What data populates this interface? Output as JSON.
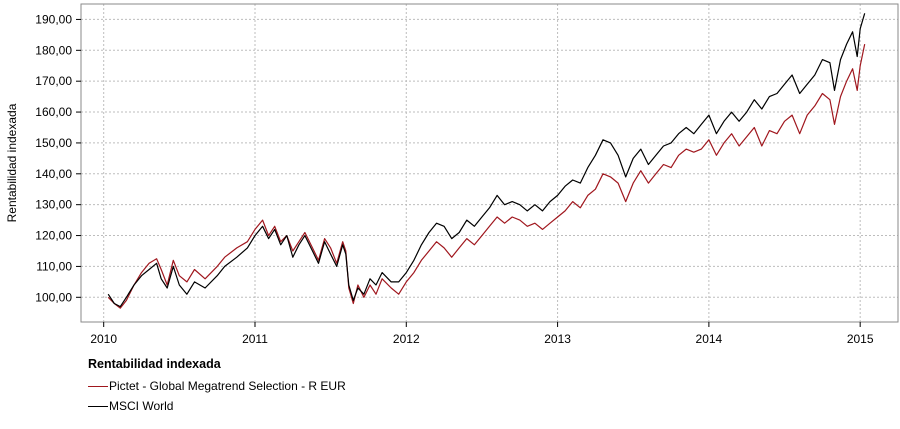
{
  "chart_data": {
    "type": "line",
    "title": "",
    "ylabel": "Rentabilidad indexada",
    "xlabel": "",
    "x_ticks": [
      "2010",
      "2011",
      "2012",
      "2013",
      "2014",
      "2015"
    ],
    "y_ticks": [
      "100,00",
      "110,00",
      "120,00",
      "130,00",
      "140,00",
      "150,00",
      "160,00",
      "170,00",
      "180,00",
      "190,00"
    ],
    "xlim": [
      2009.85,
      2015.25
    ],
    "ylim": [
      92,
      195
    ],
    "grid": true,
    "legend_title": "Rentabilidad indexada",
    "legend_placement": "bottom-left",
    "series": [
      {
        "name": "Pictet - Global Megatrend Selection - R EUR",
        "color": "#a0171e",
        "points": [
          [
            2010.03,
            100
          ],
          [
            2010.07,
            98
          ],
          [
            2010.11,
            96.5
          ],
          [
            2010.15,
            99
          ],
          [
            2010.2,
            104
          ],
          [
            2010.25,
            108
          ],
          [
            2010.3,
            111
          ],
          [
            2010.35,
            112.5
          ],
          [
            2010.38,
            109
          ],
          [
            2010.42,
            104
          ],
          [
            2010.46,
            112
          ],
          [
            2010.5,
            107
          ],
          [
            2010.55,
            105
          ],
          [
            2010.6,
            109
          ],
          [
            2010.67,
            106
          ],
          [
            2010.75,
            110
          ],
          [
            2010.8,
            113
          ],
          [
            2010.88,
            116
          ],
          [
            2010.95,
            118
          ],
          [
            2011.0,
            122
          ],
          [
            2011.05,
            125
          ],
          [
            2011.09,
            120
          ],
          [
            2011.13,
            123
          ],
          [
            2011.17,
            118
          ],
          [
            2011.21,
            120
          ],
          [
            2011.25,
            115
          ],
          [
            2011.29,
            118
          ],
          [
            2011.33,
            121
          ],
          [
            2011.38,
            116
          ],
          [
            2011.42,
            112
          ],
          [
            2011.46,
            119
          ],
          [
            2011.5,
            116
          ],
          [
            2011.54,
            111
          ],
          [
            2011.58,
            118
          ],
          [
            2011.6,
            115
          ],
          [
            2011.62,
            103
          ],
          [
            2011.65,
            98
          ],
          [
            2011.68,
            104
          ],
          [
            2011.72,
            100
          ],
          [
            2011.76,
            104
          ],
          [
            2011.8,
            101
          ],
          [
            2011.84,
            106
          ],
          [
            2011.9,
            103
          ],
          [
            2011.95,
            101
          ],
          [
            2012.0,
            105
          ],
          [
            2012.05,
            108
          ],
          [
            2012.1,
            112
          ],
          [
            2012.15,
            115
          ],
          [
            2012.2,
            118
          ],
          [
            2012.25,
            116
          ],
          [
            2012.3,
            113
          ],
          [
            2012.35,
            116
          ],
          [
            2012.4,
            119
          ],
          [
            2012.45,
            117
          ],
          [
            2012.5,
            120
          ],
          [
            2012.55,
            123
          ],
          [
            2012.6,
            126
          ],
          [
            2012.65,
            124
          ],
          [
            2012.7,
            126
          ],
          [
            2012.75,
            125
          ],
          [
            2012.8,
            123
          ],
          [
            2012.85,
            124
          ],
          [
            2012.9,
            122
          ],
          [
            2012.95,
            124
          ],
          [
            2013.0,
            126
          ],
          [
            2013.05,
            128
          ],
          [
            2013.1,
            131
          ],
          [
            2013.15,
            129
          ],
          [
            2013.2,
            133
          ],
          [
            2013.25,
            135
          ],
          [
            2013.3,
            140
          ],
          [
            2013.35,
            139
          ],
          [
            2013.4,
            137
          ],
          [
            2013.45,
            131
          ],
          [
            2013.5,
            137
          ],
          [
            2013.55,
            141
          ],
          [
            2013.6,
            137
          ],
          [
            2013.65,
            140
          ],
          [
            2013.7,
            143
          ],
          [
            2013.75,
            142
          ],
          [
            2013.8,
            146
          ],
          [
            2013.85,
            148
          ],
          [
            2013.9,
            147
          ],
          [
            2013.95,
            148
          ],
          [
            2014.0,
            151
          ],
          [
            2014.05,
            146
          ],
          [
            2014.1,
            150
          ],
          [
            2014.15,
            153
          ],
          [
            2014.2,
            149
          ],
          [
            2014.25,
            152
          ],
          [
            2014.3,
            155
          ],
          [
            2014.35,
            149
          ],
          [
            2014.4,
            154
          ],
          [
            2014.45,
            153
          ],
          [
            2014.5,
            157
          ],
          [
            2014.55,
            159
          ],
          [
            2014.6,
            153
          ],
          [
            2014.65,
            159
          ],
          [
            2014.7,
            162
          ],
          [
            2014.75,
            166
          ],
          [
            2014.8,
            164
          ],
          [
            2014.83,
            156
          ],
          [
            2014.87,
            165
          ],
          [
            2014.91,
            170
          ],
          [
            2014.95,
            174
          ],
          [
            2014.98,
            167
          ],
          [
            2015.0,
            175
          ],
          [
            2015.03,
            182
          ]
        ]
      },
      {
        "name": "MSCI World",
        "color": "#000000",
        "points": [
          [
            2010.03,
            101
          ],
          [
            2010.07,
            98
          ],
          [
            2010.11,
            97
          ],
          [
            2010.15,
            100
          ],
          [
            2010.2,
            104
          ],
          [
            2010.25,
            107
          ],
          [
            2010.3,
            109
          ],
          [
            2010.35,
            111
          ],
          [
            2010.38,
            106
          ],
          [
            2010.42,
            103
          ],
          [
            2010.46,
            110
          ],
          [
            2010.5,
            104
          ],
          [
            2010.55,
            101
          ],
          [
            2010.6,
            105
          ],
          [
            2010.67,
            103
          ],
          [
            2010.75,
            107
          ],
          [
            2010.8,
            110
          ],
          [
            2010.88,
            113
          ],
          [
            2010.95,
            116
          ],
          [
            2011.0,
            120
          ],
          [
            2011.05,
            123
          ],
          [
            2011.09,
            119
          ],
          [
            2011.13,
            122
          ],
          [
            2011.17,
            117
          ],
          [
            2011.21,
            120
          ],
          [
            2011.25,
            113
          ],
          [
            2011.29,
            117
          ],
          [
            2011.33,
            120
          ],
          [
            2011.38,
            115
          ],
          [
            2011.42,
            111
          ],
          [
            2011.46,
            118
          ],
          [
            2011.5,
            114
          ],
          [
            2011.54,
            110
          ],
          [
            2011.58,
            117
          ],
          [
            2011.6,
            114
          ],
          [
            2011.62,
            104
          ],
          [
            2011.65,
            99
          ],
          [
            2011.68,
            103
          ],
          [
            2011.72,
            101
          ],
          [
            2011.76,
            106
          ],
          [
            2011.8,
            104
          ],
          [
            2011.84,
            108
          ],
          [
            2011.9,
            105
          ],
          [
            2011.95,
            105
          ],
          [
            2012.0,
            108
          ],
          [
            2012.05,
            112
          ],
          [
            2012.1,
            117
          ],
          [
            2012.15,
            121
          ],
          [
            2012.2,
            124
          ],
          [
            2012.25,
            123
          ],
          [
            2012.3,
            119
          ],
          [
            2012.35,
            121
          ],
          [
            2012.4,
            125
          ],
          [
            2012.45,
            123
          ],
          [
            2012.5,
            126
          ],
          [
            2012.55,
            129
          ],
          [
            2012.6,
            133
          ],
          [
            2012.65,
            130
          ],
          [
            2012.7,
            131
          ],
          [
            2012.75,
            130
          ],
          [
            2012.8,
            128
          ],
          [
            2012.85,
            130
          ],
          [
            2012.9,
            128
          ],
          [
            2012.95,
            131
          ],
          [
            2013.0,
            133
          ],
          [
            2013.05,
            136
          ],
          [
            2013.1,
            138
          ],
          [
            2013.15,
            137
          ],
          [
            2013.2,
            142
          ],
          [
            2013.25,
            146
          ],
          [
            2013.3,
            151
          ],
          [
            2013.35,
            150
          ],
          [
            2013.4,
            146
          ],
          [
            2013.45,
            139
          ],
          [
            2013.5,
            145
          ],
          [
            2013.55,
            148
          ],
          [
            2013.6,
            143
          ],
          [
            2013.65,
            146
          ],
          [
            2013.7,
            149
          ],
          [
            2013.75,
            150
          ],
          [
            2013.8,
            153
          ],
          [
            2013.85,
            155
          ],
          [
            2013.9,
            153
          ],
          [
            2013.95,
            156
          ],
          [
            2014.0,
            159
          ],
          [
            2014.05,
            153
          ],
          [
            2014.1,
            157
          ],
          [
            2014.15,
            160
          ],
          [
            2014.2,
            157
          ],
          [
            2014.25,
            160
          ],
          [
            2014.3,
            164
          ],
          [
            2014.35,
            161
          ],
          [
            2014.4,
            165
          ],
          [
            2014.45,
            166
          ],
          [
            2014.5,
            169
          ],
          [
            2014.55,
            172
          ],
          [
            2014.6,
            166
          ],
          [
            2014.65,
            169
          ],
          [
            2014.7,
            172
          ],
          [
            2014.75,
            177
          ],
          [
            2014.8,
            176
          ],
          [
            2014.83,
            167
          ],
          [
            2014.87,
            177
          ],
          [
            2014.91,
            182
          ],
          [
            2014.95,
            186
          ],
          [
            2014.98,
            178
          ],
          [
            2015.0,
            187
          ],
          [
            2015.03,
            192
          ]
        ]
      }
    ]
  }
}
